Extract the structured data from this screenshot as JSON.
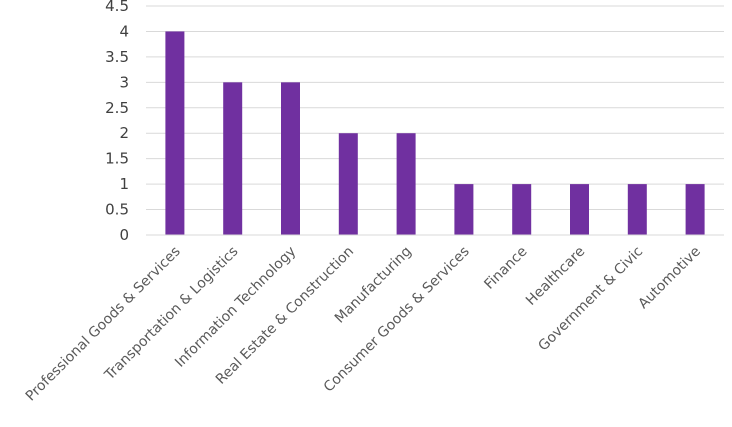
{
  "chart_data": {
    "type": "bar",
    "categories": [
      "Professional Goods & Services",
      "Transportation & Logistics",
      "Information Technology",
      "Real Estate & Construction",
      "Manufacturing",
      "Consumer Goods & Services",
      "Finance",
      "Healthcare",
      "Government & Civic",
      "Automotive"
    ],
    "values": [
      4,
      3,
      3,
      2,
      2,
      1,
      1,
      1,
      1,
      1
    ],
    "ylim": [
      0,
      4.5
    ],
    "yticks": [
      "0",
      "0.5",
      "1",
      "1.5",
      "2",
      "2.5",
      "3",
      "3.5",
      "4",
      "4.5"
    ],
    "grid": true,
    "legend": "none",
    "colors": {
      "bar": "#7030A0",
      "grid": "#d9d9d9",
      "text": "#404040"
    }
  }
}
